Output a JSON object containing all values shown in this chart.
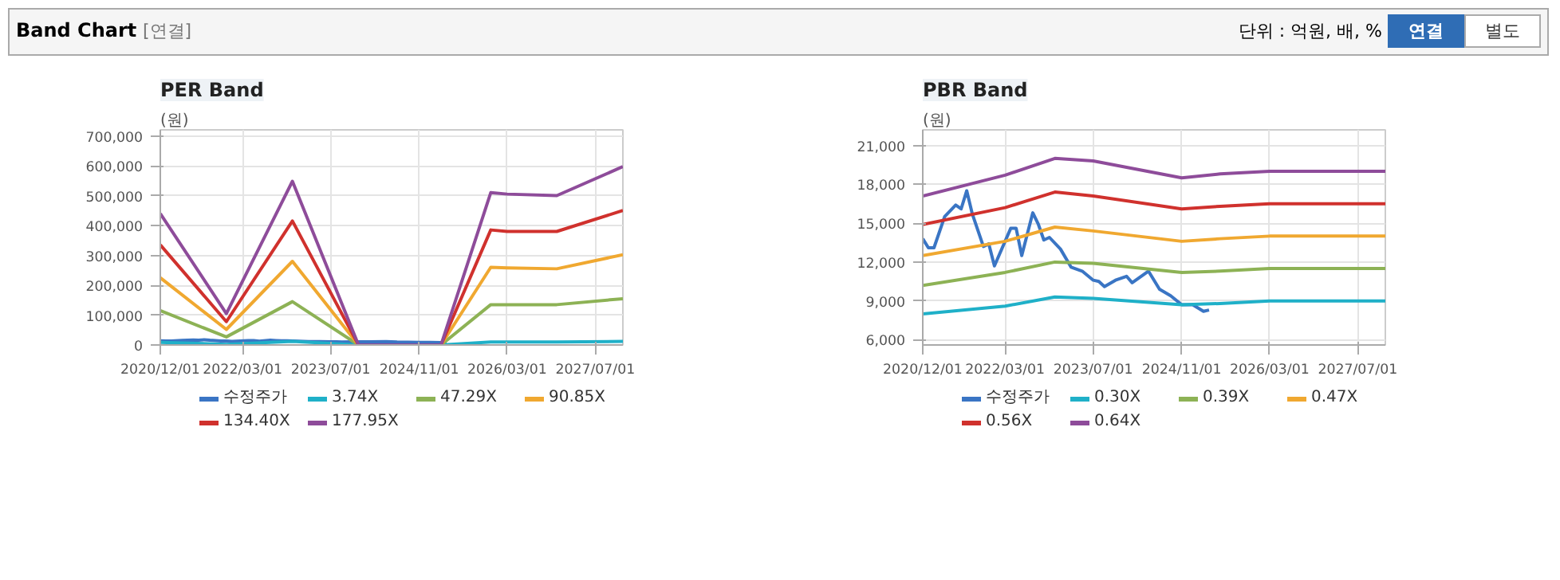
{
  "chart_data": [
    {
      "type": "line",
      "title": "PER Band",
      "ylabel": "(원)",
      "annotations": [
        "Band Chart",
        "[연결]",
        "단위 : 억원, 배, %",
        "연결",
        "별도"
      ],
      "xlim": [
        "2020-12-01",
        "2027-12-01"
      ],
      "xticks": [
        {
          "value": "2020-12-01",
          "label": "2020/12/01"
        },
        {
          "value": "2022-03-01",
          "label": "2022/03/01"
        },
        {
          "value": "2023-07-01",
          "label": "2023/07/01"
        },
        {
          "value": "2024-11-01",
          "label": "2024/11/01"
        },
        {
          "value": "2026-03-01",
          "label": "2026/03/01"
        },
        {
          "value": "2027-07-01",
          "label": "2027/07/01"
        }
      ],
      "ylim": [
        0,
        720000
      ],
      "yticks": [
        0,
        {
          "value": 100000,
          "label": "100,000"
        },
        {
          "value": 200000,
          "label": "200,000"
        },
        {
          "value": 300000,
          "label": "300,000"
        },
        {
          "value": 400000,
          "label": "400,000"
        },
        {
          "value": 500000,
          "label": "500,000"
        },
        {
          "value": 600000,
          "label": "600,000"
        },
        {
          "value": 700000,
          "label": "700,000"
        }
      ],
      "grid": true,
      "legend": "bottom",
      "series": [
        {
          "name": "수정주가",
          "color": "#3a75c4",
          "x": [
            "2020-12-01",
            "2021-01-01",
            "2021-02-01",
            "2021-04-01",
            "2021-06-01",
            "2021-07-01",
            "2021-08-01",
            "2021-09-01",
            "2021-11-01",
            "2021-12-01",
            "2022-01-01",
            "2022-04-01",
            "2022-05-01",
            "2022-06-01",
            "2022-08-01",
            "2022-09-01",
            "2022-10-01",
            "2022-11-01",
            "2023-01-01",
            "2023-03-01",
            "2023-05-01",
            "2023-07-01",
            "2023-08-01",
            "2023-09-01",
            "2023-11-01",
            "2024-01-01",
            "2024-02-01",
            "2024-05-01",
            "2024-07-01",
            "2024-09-01",
            "2024-11-01",
            "2025-01-01",
            "2025-03-01",
            "2025-04-01"
          ],
          "values": [
            13800,
            13100,
            13100,
            15500,
            16400,
            16100,
            17500,
            15700,
            13200,
            13400,
            11700,
            14600,
            14600,
            12500,
            15800,
            14900,
            13700,
            13900,
            13000,
            11600,
            11300,
            10600,
            10500,
            10100,
            10600,
            10900,
            10400,
            11300,
            9900,
            9400,
            8700,
            8700,
            8200,
            8300
          ]
        },
        {
          "name": "3.74X",
          "color": "#1fb0c8",
          "x": [
            "2020-12-01",
            "2021-12-01",
            "2022-12-01",
            "2023-12-01",
            "2025-03-01",
            "2025-12-01",
            "2026-03-01",
            "2026-12-01",
            "2027-12-01"
          ],
          "values": [
            9000,
            2000,
            12000,
            0,
            0,
            10000,
            10000,
            10000,
            12000
          ]
        },
        {
          "name": "47.29X",
          "color": "#8db255",
          "x": [
            "2020-12-01",
            "2021-12-01",
            "2022-12-01",
            "2023-12-01",
            "2025-03-01",
            "2025-12-01",
            "2026-03-01",
            "2026-12-01",
            "2027-12-01"
          ],
          "values": [
            115000,
            27000,
            145000,
            0,
            0,
            135000,
            135000,
            135000,
            155000
          ]
        },
        {
          "name": "90.85X",
          "color": "#f0a830",
          "x": [
            "2020-12-01",
            "2021-12-01",
            "2022-12-01",
            "2023-12-01",
            "2025-03-01",
            "2025-12-01",
            "2026-03-01",
            "2026-12-01",
            "2027-12-01"
          ],
          "values": [
            225000,
            52000,
            280000,
            0,
            0,
            260000,
            258000,
            255000,
            302000
          ]
        },
        {
          "name": "134.40X",
          "color": "#d0312d",
          "x": [
            "2020-12-01",
            "2021-12-01",
            "2022-12-01",
            "2023-12-01",
            "2025-03-01",
            "2025-12-01",
            "2026-03-01",
            "2026-12-01",
            "2027-12-01"
          ],
          "values": [
            335000,
            78000,
            415000,
            0,
            0,
            385000,
            380000,
            380000,
            450000
          ]
        },
        {
          "name": "177.95X",
          "color": "#8e4c9a",
          "x": [
            "2020-12-01",
            "2021-12-01",
            "2022-12-01",
            "2023-12-01",
            "2025-03-01",
            "2025-12-01",
            "2026-03-01",
            "2026-12-01",
            "2027-12-01"
          ],
          "values": [
            440000,
            105000,
            548000,
            0,
            0,
            510000,
            505000,
            500000,
            597000
          ]
        }
      ]
    },
    {
      "type": "line",
      "title": "PBR Band",
      "ylabel": "(원)",
      "xlim": [
        "2020-12-01",
        "2027-12-01"
      ],
      "xticks": [
        {
          "value": "2020-12-01",
          "label": "2020/12/01"
        },
        {
          "value": "2022-03-01",
          "label": "2022/03/01"
        },
        {
          "value": "2023-07-01",
          "label": "2023/07/01"
        },
        {
          "value": "2024-11-01",
          "label": "2024/11/01"
        },
        {
          "value": "2026-03-01",
          "label": "2026/03/01"
        },
        {
          "value": "2027-07-01",
          "label": "2027/07/01"
        }
      ],
      "ylim": [
        5600,
        22200
      ],
      "yticks": [
        {
          "value": 6000,
          "label": "6,000"
        },
        {
          "value": 9000,
          "label": "9,000"
        },
        {
          "value": 12000,
          "label": "12,000"
        },
        {
          "value": 15000,
          "label": "15,000"
        },
        {
          "value": 18000,
          "label": "18,000"
        },
        {
          "value": 21000,
          "label": "21,000"
        }
      ],
      "grid": true,
      "legend": "bottom",
      "series": [
        {
          "name": "수정주가",
          "color": "#3a75c4",
          "x": [
            "2020-12-01",
            "2021-01-01",
            "2021-02-01",
            "2021-04-01",
            "2021-06-01",
            "2021-07-01",
            "2021-08-01",
            "2021-09-01",
            "2021-11-01",
            "2021-12-01",
            "2022-01-01",
            "2022-04-01",
            "2022-05-01",
            "2022-06-01",
            "2022-08-01",
            "2022-09-01",
            "2022-10-01",
            "2022-11-01",
            "2023-01-01",
            "2023-03-01",
            "2023-05-01",
            "2023-07-01",
            "2023-08-01",
            "2023-09-01",
            "2023-11-01",
            "2024-01-01",
            "2024-02-01",
            "2024-05-01",
            "2024-07-01",
            "2024-09-01",
            "2024-11-01",
            "2025-01-01",
            "2025-03-01",
            "2025-04-01"
          ],
          "values": [
            13800,
            13100,
            13100,
            15500,
            16400,
            16100,
            17500,
            15700,
            13200,
            13400,
            11700,
            14600,
            14600,
            12500,
            15800,
            14900,
            13700,
            13900,
            13000,
            11600,
            11300,
            10600,
            10500,
            10100,
            10600,
            10900,
            10400,
            11300,
            9900,
            9400,
            8700,
            8700,
            8200,
            8300
          ]
        },
        {
          "name": "0.30X",
          "color": "#1fb0c8",
          "x": [
            "2020-12-01",
            "2022-03-01",
            "2022-12-01",
            "2023-07-01",
            "2024-11-01",
            "2025-06-01",
            "2026-03-01",
            "2027-12-01"
          ],
          "values": [
            8000,
            8600,
            9300,
            9200,
            8700,
            8800,
            9000,
            9000
          ]
        },
        {
          "name": "0.39X",
          "color": "#8db255",
          "x": [
            "2020-12-01",
            "2022-03-01",
            "2022-12-01",
            "2023-07-01",
            "2024-11-01",
            "2025-06-01",
            "2026-03-01",
            "2027-12-01"
          ],
          "values": [
            10200,
            11200,
            12000,
            11900,
            11200,
            11300,
            11500,
            11500
          ]
        },
        {
          "name": "0.47X",
          "color": "#f0a830",
          "x": [
            "2020-12-01",
            "2022-03-01",
            "2022-12-01",
            "2023-07-01",
            "2024-11-01",
            "2025-06-01",
            "2026-03-01",
            "2027-12-01"
          ],
          "values": [
            12500,
            13600,
            14700,
            14400,
            13600,
            13800,
            14000,
            14000
          ]
        },
        {
          "name": "0.56X",
          "color": "#d0312d",
          "x": [
            "2020-12-01",
            "2022-03-01",
            "2022-12-01",
            "2023-07-01",
            "2024-11-01",
            "2025-06-01",
            "2026-03-01",
            "2027-12-01"
          ],
          "values": [
            14900,
            16200,
            17400,
            17100,
            16100,
            16300,
            16500,
            16500
          ]
        },
        {
          "name": "0.64X",
          "color": "#8e4c9a",
          "x": [
            "2020-12-01",
            "2022-03-01",
            "2022-12-01",
            "2023-07-01",
            "2024-11-01",
            "2025-06-01",
            "2026-03-01",
            "2027-12-01"
          ],
          "values": [
            17100,
            18700,
            20000,
            19800,
            18500,
            18800,
            19000,
            19000
          ]
        }
      ]
    }
  ]
}
